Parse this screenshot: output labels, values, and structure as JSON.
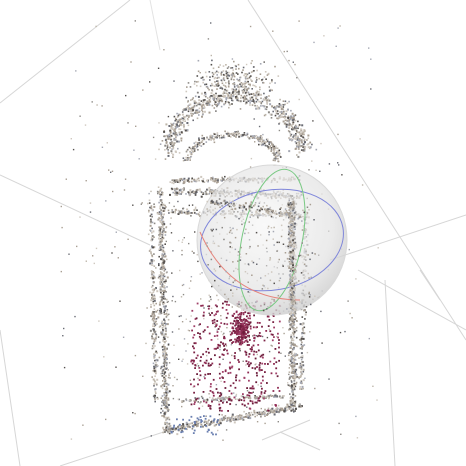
{
  "viewer": {
    "title": "",
    "colors": {
      "background": "#ffffff",
      "grid_lines": "#d6d6d6",
      "points_scene_light": "#cfc8bf",
      "points_scene_mid": "#a99f93",
      "points_scene_dark": "#55514e",
      "points_highlight": "#7b2244",
      "gizmo_sphere_fill": "#e7e7e7",
      "gizmo_ring_x": "#e5736b",
      "gizmo_ring_y": "#63c56d",
      "gizmo_ring_z": "#6b74d8"
    },
    "objects": {
      "point_cloud": "point-cloud",
      "selection_sphere": "transform-gizmo-sphere",
      "grid": "ground-grid"
    }
  }
}
